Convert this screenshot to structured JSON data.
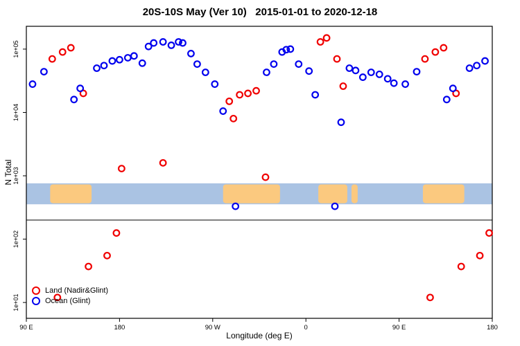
{
  "title": "20S-10S May (Ver 10)   2015-01-01 to 2020-12-18",
  "chart_data": {
    "type": "scatter",
    "title": "20S-10S May (Ver 10)   2015-01-01 to 2020-12-18",
    "xlabel": "Longitude (deg E)",
    "ylabel": "N Total",
    "y_scale": "log10",
    "ylim_log10": [
      0.75,
      5.36
    ],
    "x_range_deg": [
      0,
      450
    ],
    "grid": false,
    "legend_position": "bottom-left",
    "x_ticks": [
      {
        "deg": 0,
        "label": "90 E"
      },
      {
        "deg": 90,
        "label": "180"
      },
      {
        "deg": 180,
        "label": "90 W"
      },
      {
        "deg": 270,
        "label": "0"
      },
      {
        "deg": 360,
        "label": "90 E"
      },
      {
        "deg": 450,
        "label": "180"
      }
    ],
    "y_ticks": [
      {
        "value": 10,
        "label": "1e+01"
      },
      {
        "value": 100,
        "label": "1e+02"
      },
      {
        "value": 1000,
        "label": "1e+03"
      },
      {
        "value": 10000,
        "label": "1e+04"
      },
      {
        "value": 100000,
        "label": "1e+05"
      }
    ],
    "panel_divider_value": 200,
    "map_strip": {
      "value_range": [
        355,
        760
      ],
      "ocean_color": "#aac3e3",
      "land_color": "#fbc97f",
      "land_patches_deg": [
        [
          23,
          63
        ],
        [
          190,
          245
        ],
        [
          282,
          310
        ],
        [
          314,
          320
        ],
        [
          383,
          423
        ]
      ]
    },
    "series": [
      {
        "name": "Land (Nadir&Glint)",
        "color": "#f00000",
        "points": [
          [
            25,
            70000
          ],
          [
            35,
            90000
          ],
          [
            43,
            105000
          ],
          [
            55,
            20000
          ],
          [
            30,
            12
          ],
          [
            60,
            37
          ],
          [
            78,
            55
          ],
          [
            87,
            125
          ],
          [
            92,
            1300
          ],
          [
            132,
            1600
          ],
          [
            196,
            15000
          ],
          [
            200,
            8000
          ],
          [
            206,
            19000
          ],
          [
            214,
            20000
          ],
          [
            222,
            22000
          ],
          [
            231,
            950
          ],
          [
            284,
            130000
          ],
          [
            290,
            150000
          ],
          [
            300,
            70000
          ],
          [
            306,
            26000
          ],
          [
            385,
            70000
          ],
          [
            395,
            90000
          ],
          [
            403,
            105000
          ],
          [
            415,
            20000
          ],
          [
            390,
            12
          ],
          [
            420,
            37
          ],
          [
            438,
            55
          ],
          [
            447,
            125
          ]
        ]
      },
      {
        "name": "Ocean (Glint)",
        "color": "#0000ee",
        "points": [
          [
            6,
            28000
          ],
          [
            17,
            44000
          ],
          [
            46,
            16000
          ],
          [
            52,
            24000
          ],
          [
            68,
            50000
          ],
          [
            75,
            55000
          ],
          [
            83,
            65000
          ],
          [
            90,
            68000
          ],
          [
            98,
            73000
          ],
          [
            104,
            78000
          ],
          [
            112,
            60000
          ],
          [
            118,
            110000
          ],
          [
            123,
            125000
          ],
          [
            132,
            130000
          ],
          [
            140,
            115000
          ],
          [
            147,
            130000
          ],
          [
            151,
            125000
          ],
          [
            159,
            85000
          ],
          [
            165,
            58000
          ],
          [
            173,
            43000
          ],
          [
            182,
            28000
          ],
          [
            190,
            10500
          ],
          [
            202,
            330
          ],
          [
            232,
            43000
          ],
          [
            239,
            58000
          ],
          [
            247,
            90000
          ],
          [
            251,
            98000
          ],
          [
            255,
            100000
          ],
          [
            263,
            58000
          ],
          [
            273,
            45000
          ],
          [
            279,
            19000
          ],
          [
            298,
            330
          ],
          [
            304,
            7000
          ],
          [
            312,
            50000
          ],
          [
            318,
            46000
          ],
          [
            325,
            36000
          ],
          [
            333,
            43000
          ],
          [
            341,
            40000
          ],
          [
            349,
            34000
          ],
          [
            355,
            29000
          ],
          [
            366,
            28000
          ],
          [
            377,
            44000
          ],
          [
            406,
            16000
          ],
          [
            412,
            24000
          ],
          [
            428,
            50000
          ],
          [
            435,
            55000
          ],
          [
            443,
            65000
          ]
        ]
      }
    ]
  }
}
